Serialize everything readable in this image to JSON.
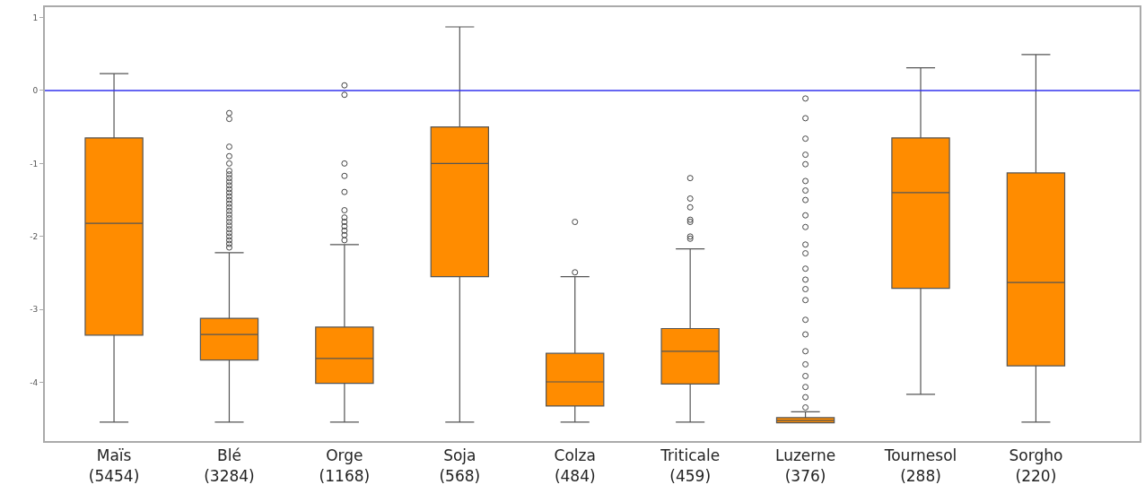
{
  "chart_data": {
    "type": "box",
    "categories": [
      "Maïs\n(5454)",
      "Blé\n(3284)",
      "Orge\n(1168)",
      "Soja\n(568)",
      "Colza\n(484)",
      "Triticale\n(459)",
      "Luzerne\n(376)",
      "Tournesol\n(288)",
      "Sorgho\n(220)"
    ],
    "color": "#ff8c00",
    "boxes": [
      {
        "low": -4.54,
        "q1": -3.35,
        "median": -1.82,
        "q3": -0.65,
        "high": 0.23
      },
      {
        "low": -4.54,
        "q1": -3.69,
        "median": -3.34,
        "q3": -3.12,
        "high": -2.22,
        "outliers": [
          -0.31,
          -0.39,
          -0.77,
          -0.9,
          -1.0,
          -1.1,
          -1.15,
          -1.2,
          -1.25,
          -1.3,
          -1.35,
          -1.4,
          -1.45,
          -1.5,
          -1.55,
          -1.6,
          -1.65,
          -1.7,
          -1.75,
          -1.8,
          -1.85,
          -1.9,
          -1.95,
          -2.0,
          -2.05,
          -2.1,
          -2.15
        ]
      },
      {
        "low": -4.54,
        "q1": -4.01,
        "median": -3.67,
        "q3": -3.24,
        "high": -2.11,
        "outliers": [
          0.07,
          -0.06,
          -1.0,
          -1.17,
          -1.39,
          -1.64,
          -1.74,
          -1.8,
          -1.86,
          -1.92,
          -1.98,
          -2.05
        ]
      },
      {
        "low": -4.54,
        "q1": -2.55,
        "median": -1.0,
        "q3": -0.5,
        "high": 0.87
      },
      {
        "low": -4.54,
        "q1": -4.32,
        "median": -3.99,
        "q3": -3.6,
        "high": -2.55,
        "outliers": [
          -1.8,
          -2.49
        ]
      },
      {
        "low": -4.54,
        "q1": -4.02,
        "median": -3.57,
        "q3": -3.26,
        "high": -2.17,
        "outliers": [
          -1.2,
          -1.48,
          -1.6,
          -1.77,
          -1.8,
          -2.0,
          -2.03
        ]
      },
      {
        "low": -4.55,
        "q1": -4.55,
        "median": -4.52,
        "q3": -4.48,
        "high": -4.4,
        "outliers": [
          -0.11,
          -0.38,
          -0.66,
          -0.88,
          -1.01,
          -1.24,
          -1.37,
          -1.5,
          -1.71,
          -1.87,
          -2.11,
          -2.23,
          -2.44,
          -2.59,
          -2.72,
          -2.87,
          -3.14,
          -3.34,
          -3.57,
          -3.75,
          -3.91,
          -4.06,
          -4.2,
          -4.34
        ]
      },
      {
        "low": -4.16,
        "q1": -2.71,
        "median": -1.4,
        "q3": -0.65,
        "high": 0.31
      },
      {
        "low": -4.54,
        "q1": -3.77,
        "median": -2.63,
        "q3": -1.13,
        "high": 0.49
      }
    ],
    "ylim": [
      -4.8,
      1.14
    ],
    "yticks": [
      1,
      0,
      -1,
      -2,
      -3,
      -4
    ],
    "ref_lines": [
      {
        "axis": "y",
        "value": 0,
        "color": "#3333ee"
      }
    ]
  }
}
